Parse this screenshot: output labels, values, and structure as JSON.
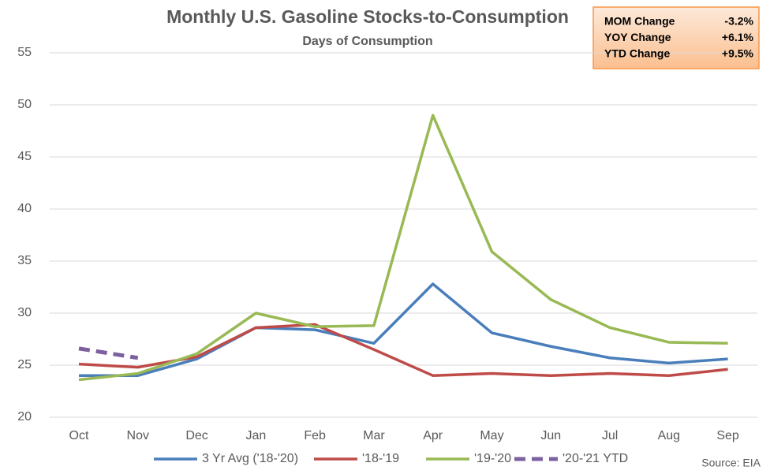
{
  "chart_data": {
    "type": "line",
    "title": "Monthly U.S. Gasoline Stocks-to-Consumption",
    "subtitle": "Days of Consumption",
    "source": "Source: EIA",
    "categories": [
      "Oct",
      "Nov",
      "Dec",
      "Jan",
      "Feb",
      "Mar",
      "Apr",
      "May",
      "Jun",
      "Jul",
      "Aug",
      "Sep"
    ],
    "series": [
      {
        "name": "3 Yr Avg ('18-'20)",
        "color": "#4a7ebb",
        "dashed": false,
        "values": [
          24.0,
          24.0,
          25.6,
          28.6,
          28.4,
          27.1,
          32.8,
          28.1,
          26.8,
          25.7,
          25.2,
          25.6
        ]
      },
      {
        "name": "'18-'19",
        "color": "#be4b48",
        "dashed": false,
        "values": [
          25.1,
          24.8,
          25.8,
          28.6,
          28.9,
          26.5,
          24.0,
          24.2,
          24.0,
          24.2,
          24.0,
          24.6
        ]
      },
      {
        "name": "'19-'20",
        "color": "#98b954",
        "dashed": false,
        "values": [
          23.6,
          24.2,
          26.1,
          30.0,
          28.7,
          28.8,
          49.0,
          35.9,
          31.3,
          28.6,
          27.2,
          27.1
        ]
      },
      {
        "name": "'20-'21 YTD",
        "color": "#7d60a0",
        "dashed": true,
        "values": [
          26.6,
          25.7,
          null,
          null,
          null,
          null,
          null,
          null,
          null,
          null,
          null,
          null
        ]
      }
    ],
    "ylim": [
      20,
      55
    ],
    "yticks": [
      20,
      25,
      30,
      35,
      40,
      45,
      50,
      55
    ],
    "grid": true,
    "legend": "bottom",
    "summary": [
      {
        "label": "MOM Change",
        "value": "-3.2%"
      },
      {
        "label": "YOY Change",
        "value": "+6.1%"
      },
      {
        "label": "YTD Change",
        "value": "+9.5%"
      }
    ]
  }
}
